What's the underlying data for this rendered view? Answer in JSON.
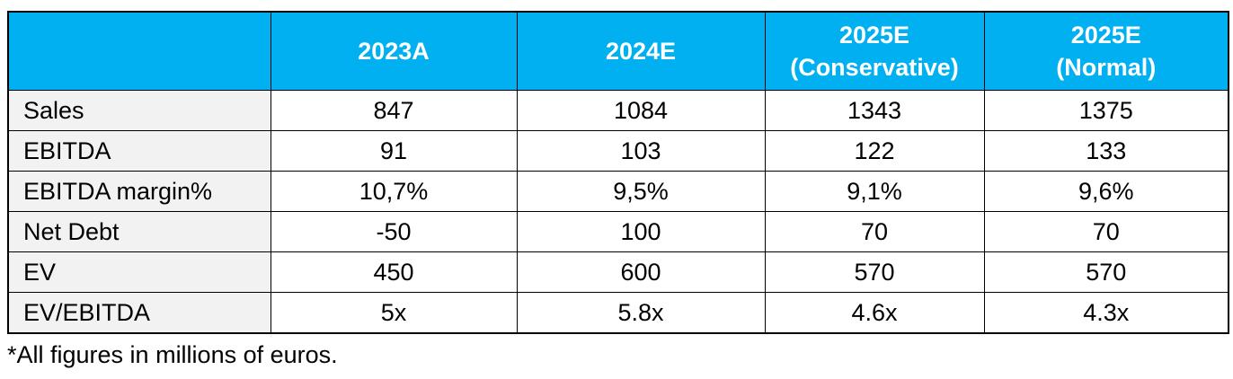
{
  "table": {
    "columns": [
      "2023A",
      "2024E",
      "2025E\n(Conservative)",
      "2025E\n(Normal)"
    ],
    "rows": [
      [
        "Sales",
        "847",
        "1084",
        "1343",
        "1375"
      ],
      [
        "EBITDA",
        "91",
        "103",
        "122",
        "133"
      ],
      [
        "EBITDA margin%",
        "10,7%",
        "9,5%",
        "9,1%",
        "9,6%"
      ],
      [
        "Net Debt",
        "-50",
        "100",
        "70",
        "70"
      ],
      [
        "EV",
        "450",
        "600",
        "570",
        "570"
      ],
      [
        "EV/EBITDA",
        "5x",
        "5.8x",
        "4.6x",
        "4.3x"
      ]
    ]
  },
  "footnote": "*All figures in millions of euros."
}
